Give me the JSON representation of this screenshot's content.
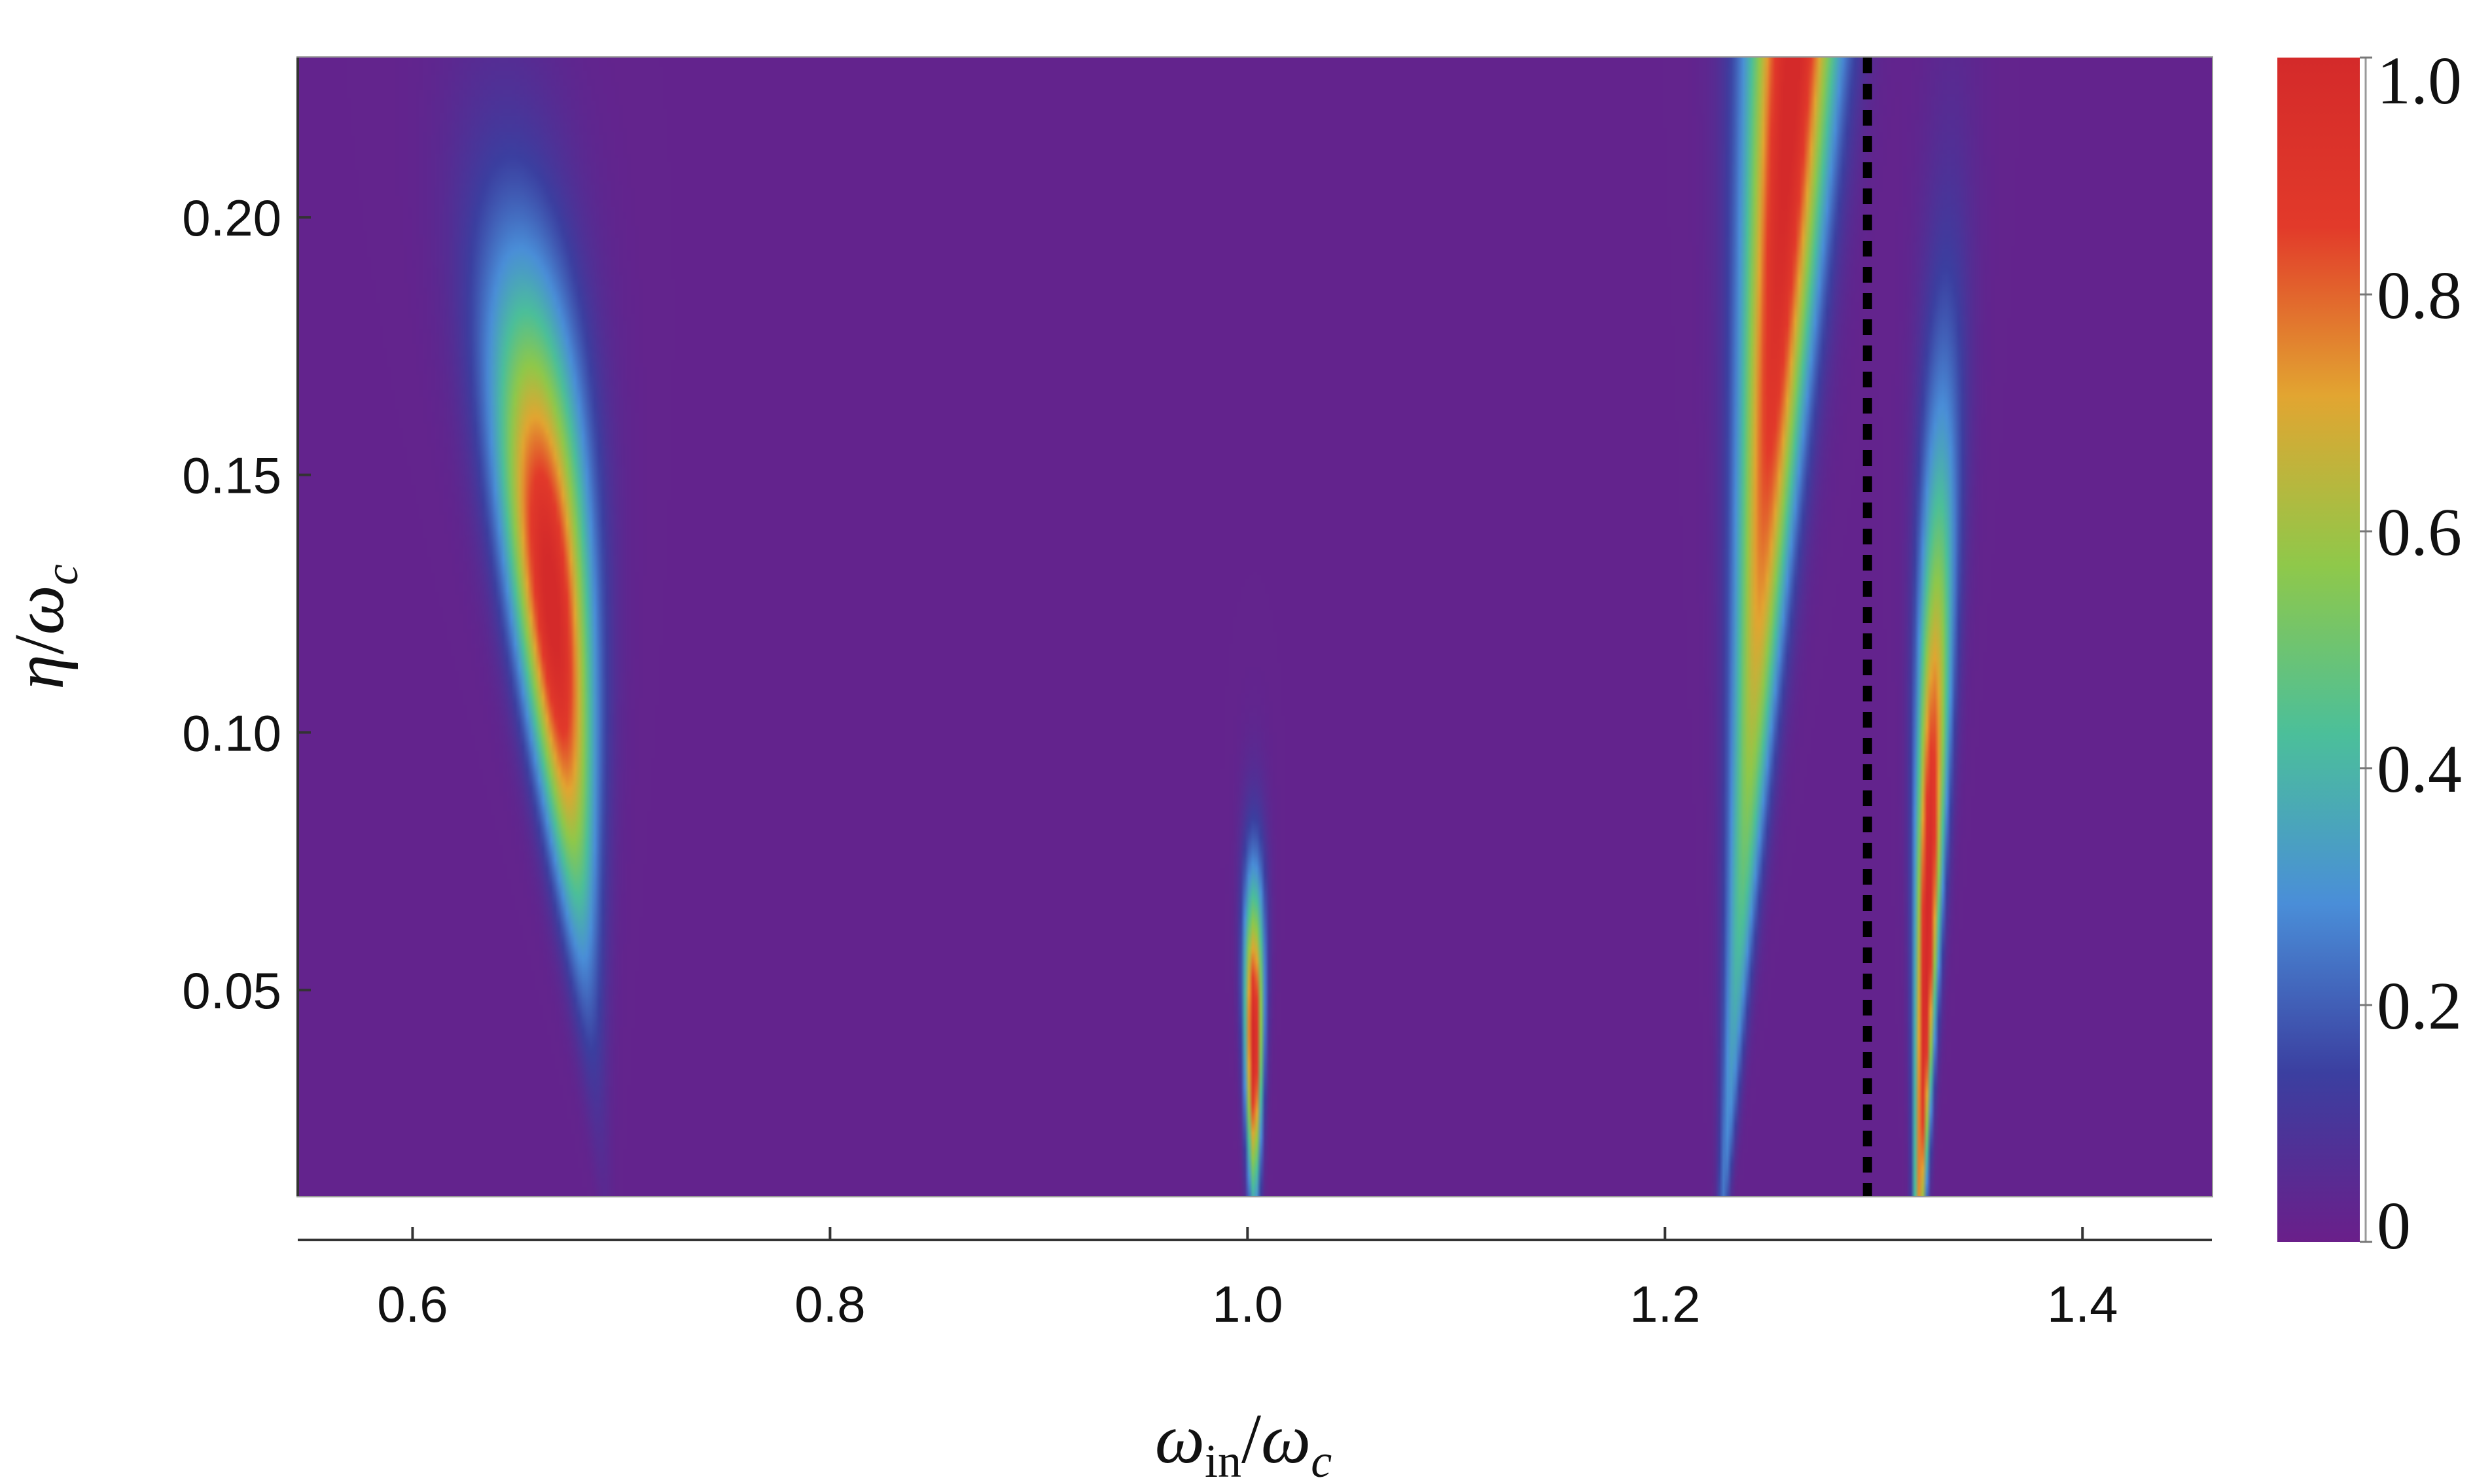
{
  "chart_data": {
    "type": "heatmap",
    "title": "",
    "xlabel": {
      "main": "ω",
      "sub": "in",
      "slash": "/",
      "den": "ω",
      "den_sub": "c"
    },
    "ylabel": {
      "main": "η",
      "slash": "/",
      "den": "ω",
      "den_sub": "c"
    },
    "xlim": [
      0.545,
      1.462
    ],
    "ylim": [
      0.01,
      0.231
    ],
    "x_ticks": [
      0.6,
      0.8,
      1.0,
      1.2,
      1.4
    ],
    "x_tick_labels": [
      "0.6",
      "0.8",
      "1.0",
      "1.2",
      "1.4"
    ],
    "y_ticks": [
      0.05,
      0.1,
      0.15,
      0.2
    ],
    "y_tick_labels": [
      "0.05",
      "0.10",
      "0.15",
      "0.20"
    ],
    "colorbar": {
      "range": [
        0,
        1
      ],
      "ticks": [
        0,
        0.2,
        0.4,
        0.6,
        0.8,
        1.0
      ],
      "tick_labels": [
        "0",
        "0.2",
        "0.4",
        "0.6",
        "0.8",
        "1.0"
      ],
      "colormap": [
        "#6a1f8a",
        "#3b3fa0",
        "#4a8ed8",
        "#4bbf9a",
        "#8fc84a",
        "#e2a531",
        "#e23a2a",
        "#d42a2a"
      ]
    },
    "background_value": 0.02,
    "resonances": [
      {
        "x0": 0.692,
        "a": -0.22,
        "w0": 0.004,
        "wk": 0.12,
        "peak_y": 0.125,
        "y_spread": 0.06,
        "peak": 1.0
      },
      {
        "x0": 1.003,
        "a": 0.0,
        "w0": 0.003,
        "wk": 0.04,
        "peak_y": 0.04,
        "y_spread": 0.03,
        "peak": 1.0
      },
      {
        "x0": 1.228,
        "a": 0.15,
        "w0": 0.003,
        "wk": 0.08,
        "peak_y": 0.23,
        "y_spread": 0.18,
        "peak": 1.0
      },
      {
        "x0": 1.322,
        "a": 0.07,
        "w0": 0.003,
        "wk": 0.05,
        "peak_y": 0.06,
        "y_spread": 0.09,
        "peak": 1.0
      }
    ],
    "dashed_line_x": 1.297
  }
}
